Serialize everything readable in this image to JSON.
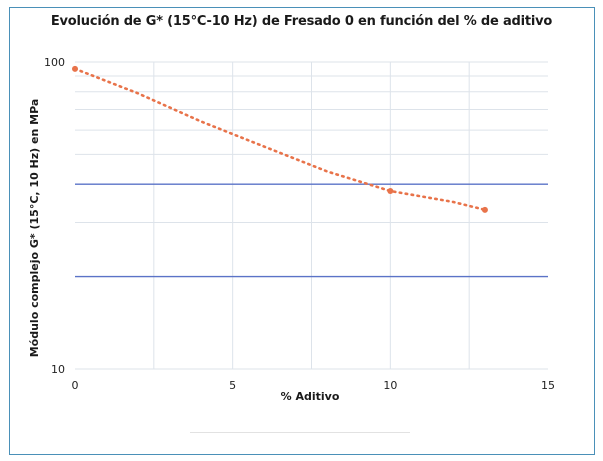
{
  "chart_data": {
    "type": "scatter",
    "title": "Evolución de G* (15°C-10 Hz) de Fresado 0 en función del % de aditivo",
    "xlabel": "% Aditivo",
    "ylabel": "Módulo complejo G* (15°C, 10 Hz) en MPa",
    "x_ticks": [
      "0",
      "5",
      "10",
      "15"
    ],
    "y_ticks": [
      "100",
      "10"
    ],
    "xlim": [
      0,
      15
    ],
    "ylim": [
      10,
      100
    ],
    "y_scale": "log",
    "grid": true,
    "series": [
      {
        "x": [
          0,
          10,
          13
        ],
        "y": [
          95,
          38,
          33
        ]
      }
    ],
    "trendline": {
      "x": [
        0,
        2,
        4,
        6,
        8,
        10,
        12,
        13
      ],
      "y": [
        95,
        79,
        64,
        53,
        44,
        38,
        35,
        33
      ]
    },
    "reference_lines_y": [
      40,
      20
    ],
    "colors": {
      "series": "#e8734a",
      "reference_line": "#5b73c7",
      "grid": "#dde3ea",
      "frame": "#4a90b8"
    }
  }
}
